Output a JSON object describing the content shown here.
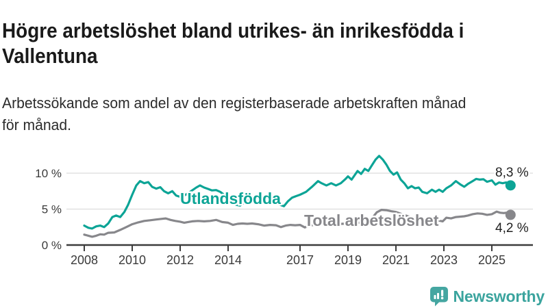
{
  "header": {
    "title_lines": [
      "Högre arbetslöshet bland utrikes- än inrikesfödda i",
      "Vallentuna"
    ],
    "subtitle_lines": [
      "Arbetssökande som andel av den registerbaserade arbetskraften månad",
      "för månad."
    ]
  },
  "footer": {
    "brand": "Newsworthy",
    "logo_icon": "newsworthy-speech-bubble-bar-chart-icon",
    "brand_color": "#3ba49e"
  },
  "chart_data": {
    "type": "line",
    "unit": "%",
    "grid": "horizontal",
    "legend_position": "inline-labels",
    "x_ticks": [
      2008,
      2010,
      2012,
      2014,
      2017,
      2019,
      2021,
      2023,
      2025
    ],
    "y_ticks": [
      0,
      5,
      10
    ],
    "y_tick_labels": [
      "0 %",
      "5 %",
      "10 %"
    ],
    "ylim": [
      0,
      13.5
    ],
    "xlim": [
      2007.2,
      2026.7
    ],
    "colors": {
      "foreign_born": "#0ca496",
      "total": "#87878b",
      "grid": "#dcdcdc",
      "axis": "#3c3c3c"
    },
    "series": [
      {
        "name": "Utlandsfödda",
        "color": "#0ca496",
        "end_label": "8,3 %",
        "end_value": 8.3,
        "points": [
          [
            2008.0,
            2.7
          ],
          [
            2008.17,
            2.4
          ],
          [
            2008.33,
            2.3
          ],
          [
            2008.5,
            2.6
          ],
          [
            2008.67,
            2.7
          ],
          [
            2008.83,
            2.5
          ],
          [
            2009.0,
            3.0
          ],
          [
            2009.17,
            3.9
          ],
          [
            2009.33,
            4.1
          ],
          [
            2009.5,
            3.9
          ],
          [
            2009.67,
            4.6
          ],
          [
            2009.83,
            5.6
          ],
          [
            2010.0,
            7.0
          ],
          [
            2010.17,
            8.3
          ],
          [
            2010.33,
            8.9
          ],
          [
            2010.5,
            8.6
          ],
          [
            2010.67,
            8.75
          ],
          [
            2010.83,
            8.1
          ],
          [
            2011.0,
            7.85
          ],
          [
            2011.17,
            8.05
          ],
          [
            2011.33,
            7.5
          ],
          [
            2011.5,
            7.2
          ],
          [
            2011.67,
            7.5
          ],
          [
            2011.83,
            6.9
          ],
          [
            2012.0,
            6.7
          ],
          [
            2012.17,
            6.9
          ],
          [
            2012.33,
            7.2
          ],
          [
            2012.5,
            7.6
          ],
          [
            2012.67,
            8.0
          ],
          [
            2012.83,
            8.3
          ],
          [
            2013.0,
            8.0
          ],
          [
            2013.17,
            7.8
          ],
          [
            2013.33,
            7.6
          ],
          [
            2013.5,
            7.65
          ],
          [
            2013.67,
            7.4
          ],
          [
            2013.83,
            7.0
          ],
          [
            2014.0,
            6.5
          ],
          [
            2014.17,
            5.9
          ],
          [
            2014.33,
            5.6
          ],
          [
            2014.5,
            5.5
          ],
          [
            2014.67,
            5.9
          ],
          [
            2014.83,
            6.2
          ],
          [
            2015.0,
            6.4
          ],
          [
            2015.25,
            6.6
          ],
          [
            2015.5,
            6.8
          ],
          [
            2015.75,
            6.95
          ],
          [
            2016.0,
            6.4
          ],
          [
            2016.17,
            5.6
          ],
          [
            2016.33,
            5.4
          ],
          [
            2016.5,
            6.1
          ],
          [
            2016.67,
            6.6
          ],
          [
            2016.83,
            6.8
          ],
          [
            2017.0,
            7.0
          ],
          [
            2017.25,
            7.4
          ],
          [
            2017.5,
            8.1
          ],
          [
            2017.75,
            8.9
          ],
          [
            2017.9,
            8.6
          ],
          [
            2018.1,
            8.3
          ],
          [
            2018.3,
            8.6
          ],
          [
            2018.5,
            8.3
          ],
          [
            2018.7,
            8.6
          ],
          [
            2018.9,
            9.2
          ],
          [
            2019.0,
            9.55
          ],
          [
            2019.15,
            9.1
          ],
          [
            2019.4,
            10.3
          ],
          [
            2019.55,
            9.9
          ],
          [
            2019.7,
            10.6
          ],
          [
            2019.85,
            10.3
          ],
          [
            2020.0,
            11.1
          ],
          [
            2020.15,
            11.9
          ],
          [
            2020.3,
            12.4
          ],
          [
            2020.45,
            11.9
          ],
          [
            2020.6,
            11.2
          ],
          [
            2020.75,
            10.3
          ],
          [
            2020.9,
            9.8
          ],
          [
            2021.05,
            10.1
          ],
          [
            2021.2,
            9.1
          ],
          [
            2021.35,
            8.6
          ],
          [
            2021.5,
            7.9
          ],
          [
            2021.65,
            8.2
          ],
          [
            2021.8,
            7.9
          ],
          [
            2021.95,
            8.0
          ],
          [
            2022.1,
            7.4
          ],
          [
            2022.3,
            7.2
          ],
          [
            2022.5,
            7.7
          ],
          [
            2022.65,
            7.4
          ],
          [
            2022.8,
            7.7
          ],
          [
            2022.95,
            7.4
          ],
          [
            2023.1,
            7.9
          ],
          [
            2023.3,
            8.3
          ],
          [
            2023.5,
            8.9
          ],
          [
            2023.7,
            8.4
          ],
          [
            2023.85,
            8.1
          ],
          [
            2024.0,
            8.5
          ],
          [
            2024.2,
            8.9
          ],
          [
            2024.35,
            9.2
          ],
          [
            2024.5,
            9.1
          ],
          [
            2024.65,
            9.15
          ],
          [
            2024.8,
            8.8
          ],
          [
            2025.0,
            9.0
          ],
          [
            2025.15,
            8.4
          ],
          [
            2025.3,
            8.7
          ],
          [
            2025.45,
            8.6
          ],
          [
            2025.6,
            8.7
          ],
          [
            2025.78,
            8.3
          ]
        ]
      },
      {
        "name": "Total arbetslöshet",
        "color": "#87878b",
        "end_label": "4,2 %",
        "end_value": 4.2,
        "points": [
          [
            2008.0,
            1.45
          ],
          [
            2008.17,
            1.3
          ],
          [
            2008.33,
            1.15
          ],
          [
            2008.5,
            1.3
          ],
          [
            2008.67,
            1.5
          ],
          [
            2008.83,
            1.45
          ],
          [
            2009.0,
            1.7
          ],
          [
            2009.25,
            1.75
          ],
          [
            2009.5,
            2.1
          ],
          [
            2009.75,
            2.5
          ],
          [
            2010.0,
            2.9
          ],
          [
            2010.25,
            3.15
          ],
          [
            2010.5,
            3.35
          ],
          [
            2010.75,
            3.45
          ],
          [
            2011.0,
            3.55
          ],
          [
            2011.25,
            3.65
          ],
          [
            2011.4,
            3.7
          ],
          [
            2011.6,
            3.5
          ],
          [
            2011.8,
            3.35
          ],
          [
            2012.0,
            3.25
          ],
          [
            2012.17,
            3.1
          ],
          [
            2012.33,
            3.2
          ],
          [
            2012.5,
            3.3
          ],
          [
            2012.75,
            3.35
          ],
          [
            2013.0,
            3.3
          ],
          [
            2013.25,
            3.35
          ],
          [
            2013.5,
            3.5
          ],
          [
            2013.75,
            3.2
          ],
          [
            2014.0,
            3.1
          ],
          [
            2014.2,
            2.8
          ],
          [
            2014.4,
            2.95
          ],
          [
            2014.6,
            3.0
          ],
          [
            2014.8,
            2.95
          ],
          [
            2015.0,
            3.0
          ],
          [
            2015.25,
            2.9
          ],
          [
            2015.5,
            2.7
          ],
          [
            2015.75,
            2.8
          ],
          [
            2016.0,
            2.75
          ],
          [
            2016.2,
            2.5
          ],
          [
            2016.4,
            2.7
          ],
          [
            2016.6,
            2.8
          ],
          [
            2016.8,
            2.75
          ],
          [
            2017.0,
            2.8
          ],
          [
            2017.2,
            2.45
          ],
          [
            2017.4,
            2.7
          ],
          [
            2017.6,
            2.8
          ],
          [
            2017.8,
            2.85
          ],
          [
            2018.0,
            2.9
          ],
          [
            2018.25,
            2.85
          ],
          [
            2018.5,
            2.9
          ],
          [
            2018.75,
            2.95
          ],
          [
            2019.0,
            3.0
          ],
          [
            2019.25,
            3.05
          ],
          [
            2019.5,
            3.1
          ],
          [
            2019.75,
            3.3
          ],
          [
            2020.0,
            3.7
          ],
          [
            2020.2,
            4.55
          ],
          [
            2020.4,
            4.9
          ],
          [
            2020.6,
            4.85
          ],
          [
            2020.8,
            4.7
          ],
          [
            2021.0,
            4.6
          ],
          [
            2021.25,
            4.3
          ],
          [
            2021.5,
            4.0
          ],
          [
            2021.75,
            3.8
          ],
          [
            2022.0,
            3.8
          ],
          [
            2022.2,
            3.65
          ],
          [
            2022.4,
            3.5
          ],
          [
            2022.6,
            3.45
          ],
          [
            2022.8,
            3.4
          ],
          [
            2022.95,
            3.3
          ],
          [
            2023.1,
            3.8
          ],
          [
            2023.3,
            3.7
          ],
          [
            2023.5,
            3.9
          ],
          [
            2023.7,
            3.95
          ],
          [
            2023.85,
            4.0
          ],
          [
            2024.0,
            4.1
          ],
          [
            2024.2,
            4.3
          ],
          [
            2024.4,
            4.4
          ],
          [
            2024.6,
            4.35
          ],
          [
            2024.8,
            4.2
          ],
          [
            2025.0,
            4.3
          ],
          [
            2025.2,
            4.65
          ],
          [
            2025.35,
            4.5
          ],
          [
            2025.5,
            4.45
          ],
          [
            2025.6,
            4.5
          ],
          [
            2025.78,
            4.2
          ]
        ]
      }
    ]
  }
}
